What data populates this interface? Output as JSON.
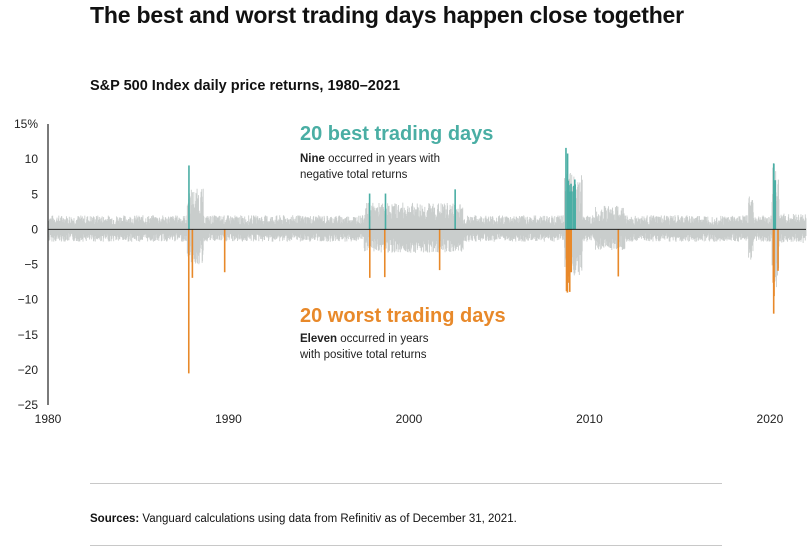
{
  "title": "The best and worst trading days happen close together",
  "subtitle": "S&P 500 Index daily price returns, 1980–2021",
  "sources": {
    "label": "Sources:",
    "text": " Vanguard calculations using data from Refinitiv as of December 31, 2021."
  },
  "colors": {
    "best": "#4aaea4",
    "worst": "#e8892a",
    "background_returns": "#c9cdcc",
    "axis": "#222222"
  },
  "annotations": {
    "best": {
      "heading": "20 best trading days",
      "bold": "Nine",
      "line1": " occurred in years with",
      "line2": "negative total returns"
    },
    "worst": {
      "heading": "20 worst trading days",
      "bold": "Eleven",
      "line1": " occurred in years",
      "line2": "with positive total returns"
    }
  },
  "chart_data": {
    "type": "bar",
    "x_ticks": [
      "1980",
      "1990",
      "2000",
      "2010",
      "2020"
    ],
    "y_ticks": [
      "15%",
      "10",
      "5",
      "0",
      "−5",
      "−10",
      "−15",
      "−20",
      "−25"
    ],
    "xlim": [
      1980,
      2022
    ],
    "ylim": [
      -25,
      15
    ],
    "series": [
      {
        "name": "20 best trading days",
        "points": [
          {
            "x": 1987.81,
            "y": 9.1
          },
          {
            "x": 1997.82,
            "y": 5.1
          },
          {
            "x": 1998.7,
            "y": 5.1
          },
          {
            "x": 2002.56,
            "y": 5.7
          },
          {
            "x": 2008.7,
            "y": 11.6
          },
          {
            "x": 2008.79,
            "y": 10.8
          },
          {
            "x": 2008.83,
            "y": 6.9
          },
          {
            "x": 2008.87,
            "y": 6.3
          },
          {
            "x": 2008.9,
            "y": 5.3
          },
          {
            "x": 2008.95,
            "y": 5.4
          },
          {
            "x": 2008.98,
            "y": 6.5
          },
          {
            "x": 2009.03,
            "y": 5.4
          },
          {
            "x": 2009.13,
            "y": 6.2
          },
          {
            "x": 2009.19,
            "y": 7.1
          },
          {
            "x": 2009.21,
            "y": 6.4
          },
          {
            "x": 2020.21,
            "y": 9.4
          },
          {
            "x": 2020.22,
            "y": 9.3
          },
          {
            "x": 2020.24,
            "y": 6.0
          },
          {
            "x": 2020.26,
            "y": 6.2
          },
          {
            "x": 2020.3,
            "y": 7.0
          }
        ]
      },
      {
        "name": "20 worst trading days",
        "points": [
          {
            "x": 1987.8,
            "y": -20.5
          },
          {
            "x": 1988.0,
            "y": -6.9
          },
          {
            "x": 1989.79,
            "y": -6.1
          },
          {
            "x": 1997.83,
            "y": -6.9
          },
          {
            "x": 1998.66,
            "y": -6.8
          },
          {
            "x": 2001.7,
            "y": -5.8
          },
          {
            "x": 2008.73,
            "y": -8.8
          },
          {
            "x": 2008.78,
            "y": -9.0
          },
          {
            "x": 2008.79,
            "y": -7.6
          },
          {
            "x": 2008.82,
            "y": -6.1
          },
          {
            "x": 2008.85,
            "y": -6.7
          },
          {
            "x": 2008.88,
            "y": -7.6
          },
          {
            "x": 2008.91,
            "y": -8.9
          },
          {
            "x": 2008.96,
            "y": -6.0
          },
          {
            "x": 2008.99,
            "y": -6.1
          },
          {
            "x": 2011.6,
            "y": -6.7
          },
          {
            "x": 2020.19,
            "y": -7.6
          },
          {
            "x": 2020.21,
            "y": -12.0
          },
          {
            "x": 2020.23,
            "y": -9.5
          },
          {
            "x": 2020.45,
            "y": -5.9
          }
        ]
      }
    ],
    "background_note_source": "S&P 500 Index daily price returns"
  }
}
